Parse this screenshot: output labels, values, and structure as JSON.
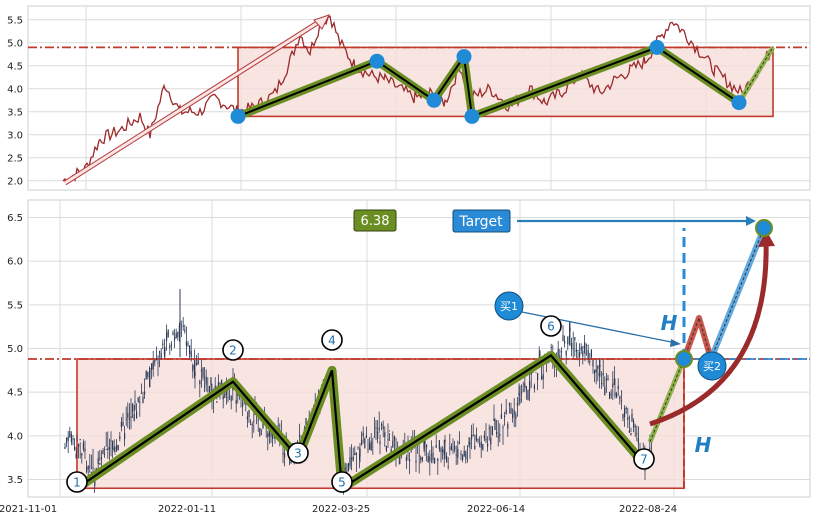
{
  "chart_data": [
    {
      "type": "line",
      "ylim": [
        1.8,
        5.8
      ],
      "yticks": [
        "2.0",
        "2.5",
        "3.0",
        "3.5",
        "4.0",
        "4.5",
        "5.0",
        "5.5"
      ],
      "grid": true,
      "resistance": 4.9,
      "range_box": {
        "y_low": 3.4,
        "y_high": 4.9
      },
      "pattern_points_y": [
        3.4,
        4.6,
        3.75,
        4.7,
        3.4,
        4.9,
        3.7,
        4.9
      ],
      "colors": {
        "price": "#9b2a2a",
        "pattern": "#6b8e23",
        "dots": "#1f8ad6",
        "box": "#c0392b"
      }
    },
    {
      "type": "candlestick",
      "ylim": [
        3.3,
        6.7
      ],
      "yticks": [
        "3.5",
        "4.0",
        "4.5",
        "5.0",
        "5.5",
        "6.0",
        "6.5"
      ],
      "x_ticks": [
        "2021-11-01",
        "2022-01-11",
        "2022-03-25",
        "2022-06-14",
        "2022-08-24"
      ],
      "grid": true,
      "resistance": 4.88,
      "support": 3.4,
      "pattern_points": [
        {
          "label": "1",
          "y": 3.4
        },
        {
          "label": "2",
          "y": 4.62
        },
        {
          "label": "3",
          "y": 3.75
        },
        {
          "label": "4",
          "y": 4.75
        },
        {
          "label": "5",
          "y": 3.4
        },
        {
          "label": "6",
          "y": 4.92
        },
        {
          "label": "7",
          "y": 3.68
        }
      ],
      "target_value": "6.38",
      "target_label": "Target",
      "measure_label": "H",
      "buy_labels": [
        "买1",
        "买2"
      ],
      "colors": {
        "candles": "#2b3a55",
        "pattern": "#6b8e23",
        "box": "#c0392b",
        "target_box": "#2a8ad6",
        "value_box": "#6b8e23",
        "arrow": "#9b2a2a"
      }
    }
  ]
}
